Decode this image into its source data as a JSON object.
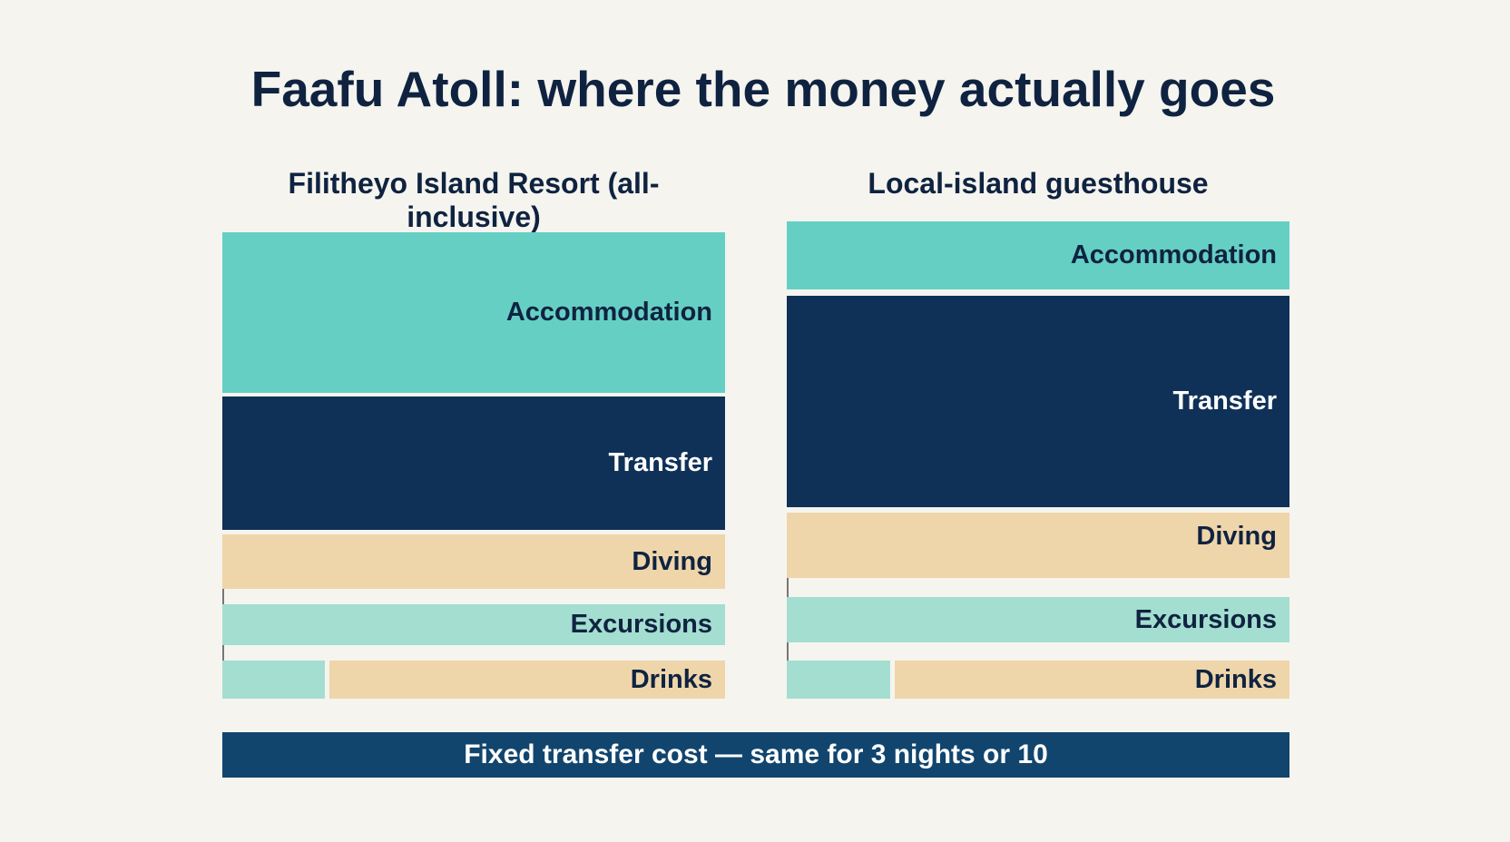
{
  "title": "Faafu Atoll: where the money actually goes",
  "columns": [
    {
      "heading": "Filitheyo Island Resort (all-inclusive)",
      "segments": [
        "Accommodation",
        "Transfer",
        "Diving",
        "Excursions",
        "Drinks"
      ]
    },
    {
      "heading": "Local-island guesthouse",
      "segments": [
        "Accommodation",
        "Transfer",
        "Diving",
        "Excursions",
        "Drinks"
      ]
    }
  ],
  "footer": "Fixed transfer cost — same for 3 nights or 10"
}
